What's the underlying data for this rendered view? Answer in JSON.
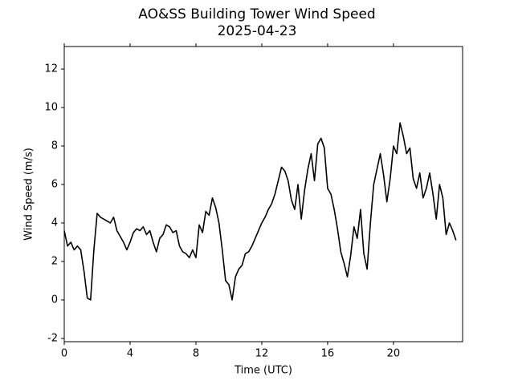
{
  "chart_data": {
    "type": "line",
    "title": "AO&SS Building Tower Wind Speed",
    "subtitle": "2025-04-23",
    "x_label": "Time (UTC)",
    "y_label": "Wind Speed (m/s)",
    "color": "#000000",
    "xlim": [
      0,
      24.2
    ],
    "ylim": [
      -2.17,
      13.17
    ],
    "xticks": [
      0,
      4,
      8,
      12,
      16,
      20
    ],
    "yticks": [
      -2,
      0,
      2,
      4,
      6,
      8,
      10,
      12
    ],
    "x": [
      0.0,
      0.2,
      0.4,
      0.6,
      0.8,
      1.0,
      1.2,
      1.4,
      1.6,
      1.8,
      2.0,
      2.2,
      2.4,
      2.6,
      2.8,
      3.0,
      3.2,
      3.4,
      3.6,
      3.8,
      4.0,
      4.2,
      4.4,
      4.6,
      4.8,
      5.0,
      5.2,
      5.4,
      5.6,
      5.8,
      6.0,
      6.2,
      6.4,
      6.6,
      6.8,
      7.0,
      7.2,
      7.4,
      7.6,
      7.8,
      8.0,
      8.2,
      8.4,
      8.6,
      8.8,
      9.0,
      9.2,
      9.4,
      9.6,
      9.8,
      10.0,
      10.2,
      10.4,
      10.6,
      10.8,
      11.0,
      11.2,
      11.4,
      11.6,
      11.8,
      12.0,
      12.2,
      12.4,
      12.6,
      12.8,
      13.0,
      13.2,
      13.4,
      13.6,
      13.8,
      14.0,
      14.2,
      14.4,
      14.6,
      14.8,
      15.0,
      15.2,
      15.4,
      15.6,
      15.8,
      16.0,
      16.2,
      16.4,
      16.6,
      16.8,
      17.0,
      17.2,
      17.4,
      17.6,
      17.8,
      18.0,
      18.2,
      18.4,
      18.6,
      18.8,
      19.0,
      19.2,
      19.4,
      19.6,
      19.8,
      20.0,
      20.2,
      20.4,
      20.6,
      20.8,
      21.0,
      21.2,
      21.4,
      21.6,
      21.8,
      22.0,
      22.2,
      22.4,
      22.6,
      22.8,
      23.0,
      23.2,
      23.4,
      23.6,
      23.8
    ],
    "values": [
      3.6,
      2.8,
      3.0,
      2.6,
      2.8,
      2.6,
      1.5,
      0.1,
      0.0,
      2.6,
      4.5,
      4.3,
      4.2,
      4.1,
      4.0,
      4.3,
      3.6,
      3.3,
      3.0,
      2.6,
      3.0,
      3.5,
      3.7,
      3.6,
      3.8,
      3.4,
      3.6,
      3.0,
      2.5,
      3.2,
      3.4,
      3.9,
      3.8,
      3.5,
      3.6,
      2.8,
      2.5,
      2.4,
      2.2,
      2.6,
      2.2,
      3.9,
      3.5,
      4.6,
      4.4,
      5.3,
      4.8,
      4.0,
      2.6,
      1.0,
      0.8,
      0.0,
      1.2,
      1.6,
      1.8,
      2.4,
      2.5,
      2.8,
      3.2,
      3.6,
      4.0,
      4.3,
      4.7,
      5.0,
      5.5,
      6.2,
      6.9,
      6.7,
      6.2,
      5.2,
      4.7,
      6.0,
      4.2,
      5.7,
      6.8,
      7.6,
      6.2,
      8.1,
      8.4,
      7.9,
      5.8,
      5.5,
      4.7,
      3.7,
      2.5,
      1.9,
      1.2,
      2.3,
      3.8,
      3.2,
      4.7,
      2.4,
      1.6,
      4.0,
      6.0,
      6.8,
      7.6,
      6.5,
      5.1,
      6.3,
      8.0,
      7.6,
      9.2,
      8.5,
      7.6,
      7.9,
      6.3,
      5.8,
      6.6,
      5.3,
      5.8,
      6.6,
      5.5,
      4.2,
      6.0,
      5.3,
      3.4,
      4.0,
      3.6,
      3.1
    ]
  }
}
